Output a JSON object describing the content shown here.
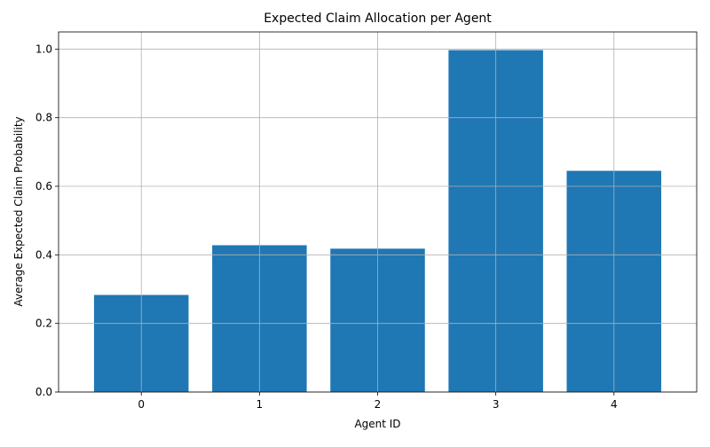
{
  "chart_data": {
    "type": "bar",
    "title": "Expected Claim Allocation per Agent",
    "xlabel": "Agent ID",
    "ylabel": "Average Expected Claim Probability",
    "categories": [
      "0",
      "1",
      "2",
      "3",
      "4"
    ],
    "values": [
      0.283,
      0.428,
      0.418,
      0.997,
      0.645
    ],
    "ylim": [
      0,
      1.05
    ],
    "yticks": [
      "0.0",
      "0.2",
      "0.4",
      "0.6",
      "0.8",
      "1.0"
    ],
    "grid": true,
    "bar_color": "#1f77b4",
    "grid_color": "#b0b0b0"
  }
}
